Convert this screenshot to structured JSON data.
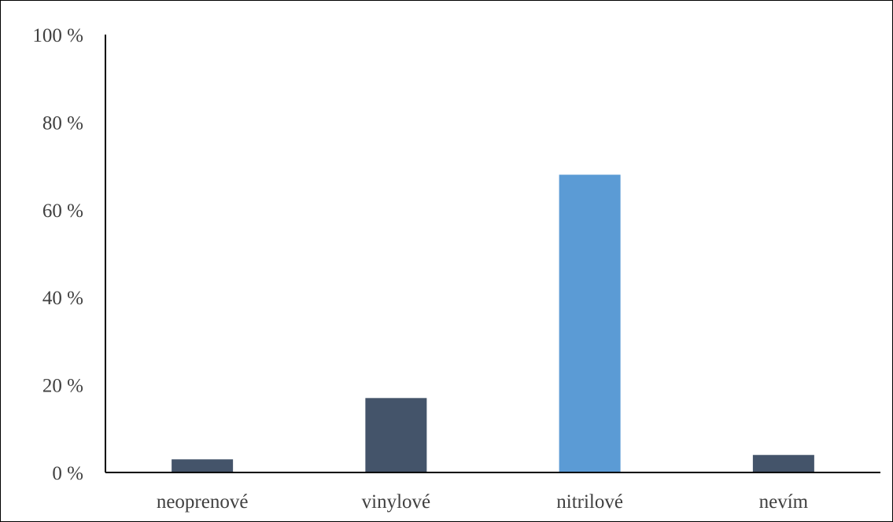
{
  "chart_data": {
    "type": "bar",
    "categories": [
      "neoprenové",
      "vinylové",
      "nitrilové",
      "nevím"
    ],
    "values": [
      3,
      17,
      68,
      4
    ],
    "title": "",
    "xlabel": "",
    "ylabel": "",
    "ylim": [
      0,
      100
    ],
    "yticks": [
      0,
      20,
      40,
      60,
      80,
      100
    ],
    "ytick_labels": [
      "0 %",
      "20 %",
      "40 %",
      "60 %",
      "80 %",
      "100 %"
    ],
    "grid": false,
    "legend": "none",
    "colors": {
      "default_bar": "#44546A",
      "highlight_bar": "#5B9BD5",
      "axis": "#000000",
      "text": "#404040"
    },
    "highlight_index": 2
  }
}
